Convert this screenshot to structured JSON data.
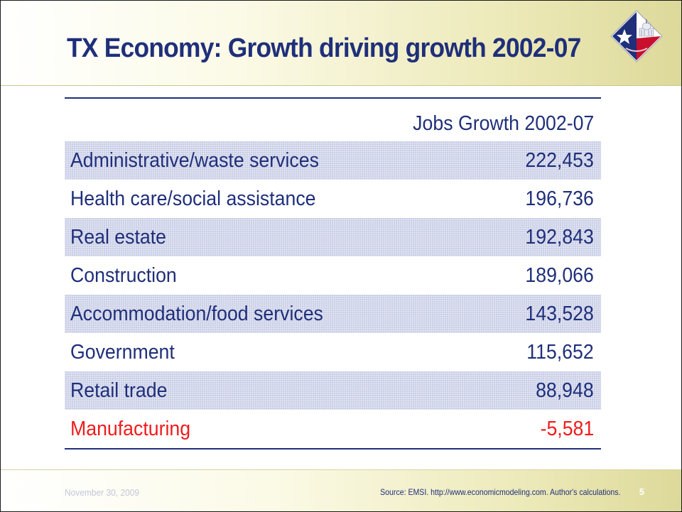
{
  "slide": {
    "title": "TX Economy: Growth driving growth 2002-07",
    "logo": {
      "icon": "texas-star-capitol-logo",
      "colors": {
        "star_field": "#1f2f7a",
        "red": "#c8102e",
        "white": "#ffffff"
      }
    }
  },
  "table": {
    "column_header": "Jobs Growth 2002-07",
    "rows": [
      {
        "label": "Administrative/waste services",
        "value": "222,453"
      },
      {
        "label": "Health care/social assistance",
        "value": "196,736"
      },
      {
        "label": "Real estate",
        "value": "192,843"
      },
      {
        "label": "Construction",
        "value": "189,066"
      },
      {
        "label": "Accommodation/food services",
        "value": "143,528"
      },
      {
        "label": "Government",
        "value": "115,652"
      },
      {
        "label": "Retail trade",
        "value": "88,948"
      },
      {
        "label": "Manufacturing",
        "value": "-5,581"
      }
    ],
    "colors": {
      "text": "#1f2f7a",
      "negative": "#ee1c1c",
      "shade": "#c9cee6"
    }
  },
  "footer": {
    "date": "November 30, 2009",
    "source": "Source: EMSI. http://www.economicmodeling.com. Author's calculations.",
    "page_number": "5"
  }
}
